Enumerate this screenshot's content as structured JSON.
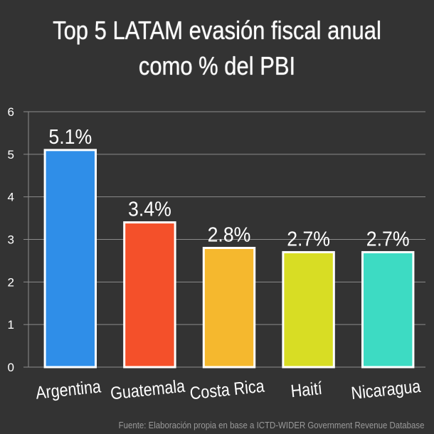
{
  "title_lines": [
    "Top 5 LATAM evasión fiscal anual",
    "como % del PBI"
  ],
  "source": "Fuente: Elaboración propia en base a ICTD-WIDER Government Revenue Database",
  "chart_data": {
    "type": "bar",
    "title": "Top 5 LATAM evasión fiscal anual como % del PBI",
    "categories": [
      "Argentina",
      "Guatemala",
      "Costa Rica",
      "Haití",
      "Nicaragua"
    ],
    "values": [
      5.1,
      3.4,
      2.8,
      2.7,
      2.7
    ],
    "data_labels": [
      "5.1%",
      "3.4%",
      "2.8%",
      "2.7%",
      "2.7%"
    ],
    "bar_colors": [
      "#2f8ee8",
      "#f4502a",
      "#f5b82e",
      "#d8dd24",
      "#3ddbc3"
    ],
    "bar_border_color": "#ffffff",
    "grid_color": "#8c8c8c",
    "ylim": [
      0,
      6
    ],
    "yticks": [
      0,
      1,
      2,
      3,
      4,
      5,
      6
    ],
    "grid": true,
    "xlabel": "",
    "ylabel": ""
  }
}
